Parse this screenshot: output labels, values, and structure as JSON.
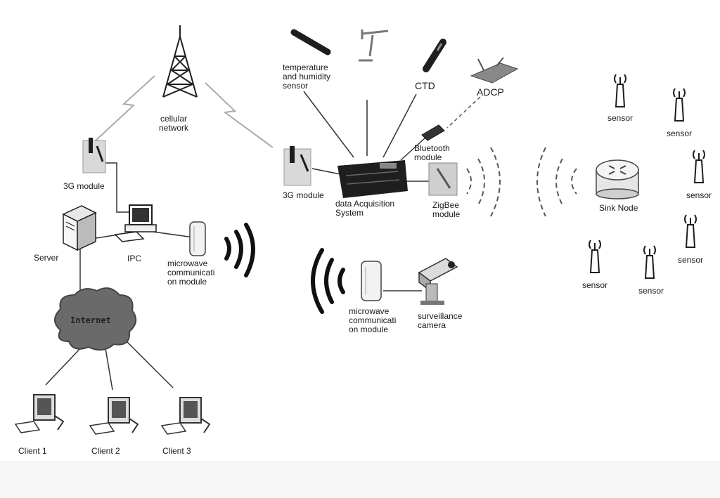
{
  "colors": {
    "line": "#333333",
    "device": "#1e1e1e",
    "device_light": "#cccccc",
    "cloud": "#666666",
    "paper": "#ffffff"
  },
  "labels": {
    "cellular_network": "cellular\nnetwork",
    "module_3g_left": "3G module",
    "module_3g_center": "3G module",
    "server": "Server",
    "ipc": "IPC",
    "microwave_left": "microwave\ncommunicati\non module",
    "microwave_center": "microwave\ncommunicati\non module",
    "internet": "Internet",
    "client1": "Client 1",
    "client2": "Client 2",
    "client3": "Client 3",
    "temperature_sensor": "temperature\nand humidity\nsensor",
    "ctd": "CTD",
    "adcp": "ADCP",
    "bluetooth": "Bluetooth\nmodule",
    "data_acquisition": "data Acquisition\nSystem",
    "zigbee": "ZigBee\nmodule",
    "surveillance_camera": "surveillance\ncamera",
    "sink_node": "Sink Node",
    "sensor": "sensor"
  },
  "icons": [
    "cell-tower-icon",
    "3g-module-icon",
    "server-icon",
    "pc-icon",
    "microwave-antenna-icon",
    "cloud-icon",
    "data-logger-icon",
    "zigbee-module-icon",
    "router-icon",
    "sensor-mote-icon",
    "camera-icon",
    "probe-icon",
    "bluetooth-dongle-icon",
    "adcp-icon"
  ]
}
